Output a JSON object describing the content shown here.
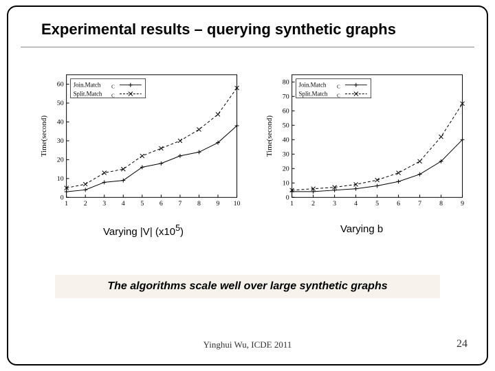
{
  "title": "Experimental results – querying synthetic graphs",
  "title_fontsize": 22,
  "chart_left": {
    "type": "line",
    "ylabel": "Time(second)",
    "label_fontsize": 11,
    "xvals": [
      1,
      2,
      3,
      4,
      5,
      6,
      7,
      8,
      9,
      10
    ],
    "ylim": [
      0,
      65
    ],
    "ytick_step": 10,
    "yticks": [
      0,
      10,
      20,
      30,
      40,
      50,
      60
    ],
    "legend": [
      {
        "name": "Join.Match_C",
        "marker": "plus"
      },
      {
        "name": "Split.Match_C",
        "marker": "cross"
      }
    ],
    "series": [
      {
        "name": "Join.Match_C",
        "marker": "plus",
        "color": "#000000",
        "y": [
          3,
          4,
          8,
          9,
          16,
          18,
          22,
          24,
          29,
          38
        ],
        "dash": "none"
      },
      {
        "name": "Split.Match_C",
        "marker": "cross",
        "color": "#000000",
        "y": [
          5,
          7,
          13,
          15,
          22,
          26,
          30,
          36,
          44,
          58
        ],
        "dash": "4,3"
      }
    ],
    "background_color": "#ffffff",
    "axis_color": "#000000",
    "line_width": 1,
    "caption": "Varying |V| (x10",
    "caption_super": "5",
    "caption_suffix": ")",
    "caption_fontsize": 15
  },
  "chart_right": {
    "type": "line",
    "ylabel": "Time(second)",
    "label_fontsize": 11,
    "xvals": [
      1,
      2,
      3,
      4,
      5,
      6,
      7,
      8,
      9
    ],
    "ylim": [
      0,
      85
    ],
    "ytick_step": 10,
    "yticks": [
      0,
      10,
      20,
      30,
      40,
      50,
      60,
      70,
      80
    ],
    "legend": [
      {
        "name": "Join.Match_C",
        "marker": "plus"
      },
      {
        "name": "Split.Match_C",
        "marker": "cross"
      }
    ],
    "series": [
      {
        "name": "Join.Match_C",
        "marker": "plus",
        "color": "#000000",
        "y": [
          4,
          4,
          5,
          6,
          8,
          11,
          16,
          25,
          40
        ],
        "dash": "none"
      },
      {
        "name": "Split.Match_C",
        "marker": "cross",
        "color": "#000000",
        "y": [
          5,
          6,
          7,
          9,
          12,
          17,
          25,
          42,
          65
        ],
        "dash": "4,3"
      }
    ],
    "background_color": "#ffffff",
    "axis_color": "#000000",
    "line_width": 1,
    "caption": "Varying b",
    "caption_fontsize": 15
  },
  "summary": "The algorithms scale well over large synthetic graphs",
  "summary_fontsize": 16,
  "summary_bg": "#f7f2eb",
  "footer": "Yinghui Wu, ICDE 2011",
  "footer_fontsize": 13,
  "page_number": "24",
  "page_number_fontsize": 16
}
